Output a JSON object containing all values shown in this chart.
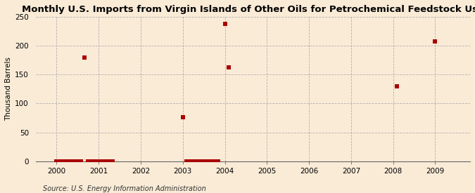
{
  "title": "Monthly U.S. Imports from Virgin Islands of Other Oils for Petrochemical Feedstock Use",
  "ylabel": "Thousand Barrels",
  "source": "Source: U.S. Energy Information Administration",
  "background_color": "#faebd7",
  "plot_background_color": "#faebd7",
  "marker_color": "#aa0000",
  "marker": "s",
  "marker_size": 4,
  "xlim": [
    1999.5,
    2009.83
  ],
  "ylim": [
    0,
    250
  ],
  "yticks": [
    0,
    50,
    100,
    150,
    200,
    250
  ],
  "xticks": [
    2000,
    2001,
    2002,
    2003,
    2004,
    2005,
    2006,
    2007,
    2008,
    2009
  ],
  "data_x": [
    2000.0,
    2000.083,
    2000.167,
    2000.25,
    2000.333,
    2000.417,
    2000.5,
    2000.583,
    2000.667,
    2000.75,
    2000.833,
    2000.917,
    2001.0,
    2001.083,
    2001.167,
    2001.25,
    2001.333,
    2003.0,
    2003.083,
    2003.167,
    2003.25,
    2003.333,
    2003.417,
    2003.5,
    2003.583,
    2003.667,
    2003.75,
    2003.833,
    2004.0,
    2004.083,
    2008.083,
    2009.0
  ],
  "data_y": [
    0,
    0,
    0,
    0,
    0,
    0,
    0,
    0,
    179,
    0,
    0,
    0,
    0,
    0,
    0,
    0,
    0,
    76,
    0,
    0,
    0,
    0,
    0,
    0,
    0,
    0,
    0,
    0,
    238,
    163,
    130,
    207
  ],
  "title_fontsize": 9.5,
  "axis_fontsize": 7.5,
  "ylabel_fontsize": 7.5,
  "source_fontsize": 7
}
